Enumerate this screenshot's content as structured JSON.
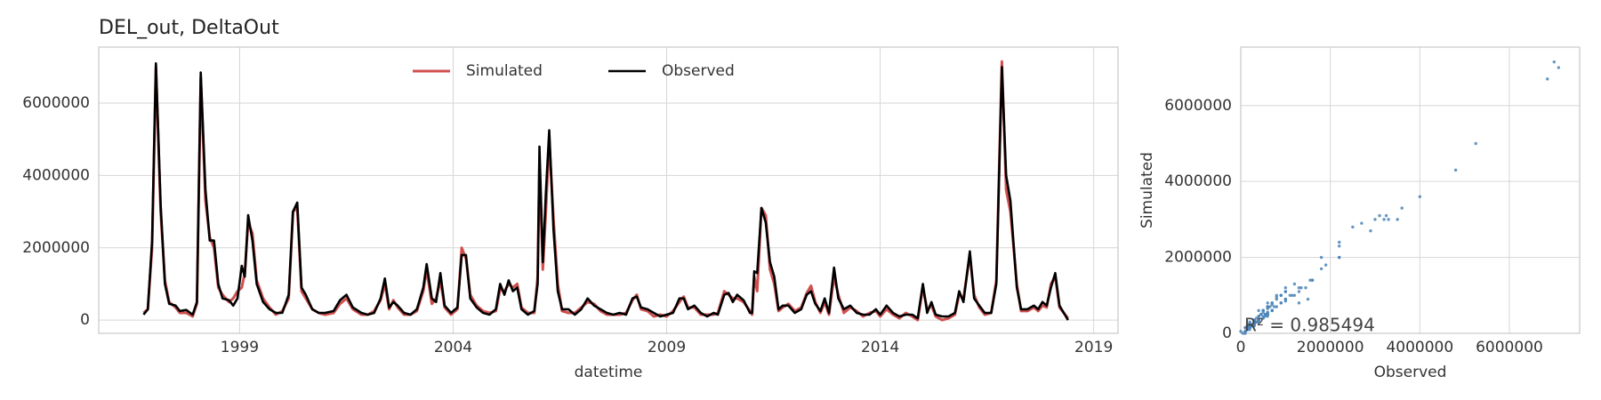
{
  "chart_data": [
    {
      "type": "line",
      "title": "DEL_out, DeltaOut",
      "xlabel": "datetime",
      "legend": "upper center",
      "grid": true,
      "xlim": [
        1995.7,
        2019.57
      ],
      "xticks": [
        1999,
        2004,
        2009,
        2014,
        2019
      ],
      "ylim": [
        -366000,
        7550000
      ],
      "yticks": [
        0,
        2000000,
        4000000,
        6000000
      ],
      "x": [
        1996.75,
        1996.85,
        1996.95,
        1997.04,
        1997.15,
        1997.25,
        1997.35,
        1997.5,
        1997.6,
        1997.75,
        1997.9,
        1998.0,
        1998.09,
        1998.2,
        1998.3,
        1998.4,
        1998.5,
        1998.6,
        1998.75,
        1998.85,
        1998.95,
        1999.05,
        1999.12,
        1999.2,
        1999.3,
        1999.4,
        1999.55,
        1999.7,
        1999.85,
        2000.0,
        2000.15,
        2000.25,
        2000.35,
        2000.45,
        2000.55,
        2000.7,
        2000.85,
        2001.0,
        2001.2,
        2001.35,
        2001.5,
        2001.65,
        2001.85,
        2002.0,
        2002.15,
        2002.3,
        2002.4,
        2002.5,
        2002.6,
        2002.7,
        2002.85,
        2003.0,
        2003.15,
        2003.3,
        2003.38,
        2003.5,
        2003.6,
        2003.7,
        2003.8,
        2003.95,
        2004.1,
        2004.2,
        2004.3,
        2004.4,
        2004.55,
        2004.7,
        2004.85,
        2005.0,
        2005.1,
        2005.2,
        2005.3,
        2005.4,
        2005.5,
        2005.6,
        2005.75,
        2005.9,
        2005.98,
        2006.02,
        2006.1,
        2006.17,
        2006.25,
        2006.35,
        2006.45,
        2006.55,
        2006.7,
        2006.85,
        2007.0,
        2007.15,
        2007.3,
        2007.45,
        2007.6,
        2007.75,
        2007.9,
        2008.05,
        2008.2,
        2008.3,
        2008.4,
        2008.55,
        2008.7,
        2008.85,
        2009.0,
        2009.15,
        2009.3,
        2009.4,
        2009.5,
        2009.65,
        2009.8,
        2009.95,
        2010.1,
        2010.2,
        2010.35,
        2010.45,
        2010.55,
        2010.65,
        2010.8,
        2010.95,
        2011.0,
        2011.05,
        2011.12,
        2011.22,
        2011.32,
        2011.42,
        2011.52,
        2011.62,
        2011.72,
        2011.85,
        2012.0,
        2012.15,
        2012.28,
        2012.38,
        2012.48,
        2012.6,
        2012.7,
        2012.8,
        2012.92,
        2013.02,
        2013.15,
        2013.3,
        2013.45,
        2013.6,
        2013.75,
        2013.9,
        2014.0,
        2014.15,
        2014.3,
        2014.45,
        2014.6,
        2014.75,
        2014.88,
        2015.0,
        2015.1,
        2015.2,
        2015.3,
        2015.45,
        2015.6,
        2015.75,
        2015.85,
        2015.95,
        2016.1,
        2016.2,
        2016.32,
        2016.45,
        2016.6,
        2016.72,
        2016.85,
        2016.95,
        2017.05,
        2017.2,
        2017.3,
        2017.45,
        2017.6,
        2017.7,
        2017.8,
        2017.9,
        2018.0,
        2018.1,
        2018.2,
        2018.4
      ],
      "series": [
        {
          "name": "Simulated",
          "color": "#d0504f",
          "values": [
            200000,
            300000,
            2000000,
            7000000,
            3000000,
            1100000,
            500000,
            350000,
            200000,
            200000,
            100000,
            450000,
            6700000,
            3300000,
            2300000,
            2000000,
            900000,
            700000,
            500000,
            600000,
            800000,
            900000,
            1300000,
            2700000,
            2400000,
            1100000,
            600000,
            350000,
            150000,
            250000,
            600000,
            3000000,
            3100000,
            800000,
            600000,
            300000,
            200000,
            150000,
            200000,
            450000,
            600000,
            300000,
            150000,
            150000,
            250000,
            550000,
            1000000,
            300000,
            550000,
            350000,
            150000,
            150000,
            250000,
            800000,
            1400000,
            450000,
            600000,
            1100000,
            350000,
            150000,
            300000,
            2000000,
            1700000,
            700000,
            400000,
            250000,
            200000,
            250000,
            850000,
            800000,
            1000000,
            900000,
            1000000,
            350000,
            200000,
            200000,
            1200000,
            4300000,
            1400000,
            3000000,
            5000000,
            2800000,
            1000000,
            250000,
            200000,
            200000,
            350000,
            500000,
            450000,
            250000,
            150000,
            150000,
            150000,
            200000,
            550000,
            700000,
            300000,
            250000,
            100000,
            150000,
            100000,
            250000,
            500000,
            650000,
            350000,
            350000,
            150000,
            150000,
            150000,
            200000,
            800000,
            700000,
            600000,
            600000,
            500000,
            250000,
            150000,
            1200000,
            800000,
            3100000,
            2900000,
            1400000,
            1000000,
            250000,
            350000,
            450000,
            250000,
            350000,
            750000,
            950000,
            500000,
            200000,
            500000,
            150000,
            1200000,
            700000,
            200000,
            350000,
            250000,
            100000,
            200000,
            250000,
            100000,
            300000,
            150000,
            50000,
            200000,
            100000,
            0,
            900000,
            300000,
            400000,
            100000,
            0,
            50000,
            150000,
            700000,
            600000,
            1800000,
            700000,
            350000,
            150000,
            200000,
            1100000,
            7150000,
            3600000,
            3000000,
            1000000,
            250000,
            250000,
            350000,
            250000,
            400000,
            350000,
            1000000,
            1200000,
            350000,
            50000
          ]
        },
        {
          "name": "Observed",
          "color": "#000000",
          "values": [
            150000,
            300000,
            2200000,
            7100000,
            3200000,
            1000000,
            450000,
            400000,
            250000,
            280000,
            150000,
            500000,
            6850000,
            3600000,
            2200000,
            2200000,
            1000000,
            600000,
            550000,
            400000,
            600000,
            1500000,
            1200000,
            2900000,
            2200000,
            1000000,
            500000,
            300000,
            200000,
            200000,
            700000,
            3000000,
            3250000,
            900000,
            700000,
            300000,
            200000,
            200000,
            250000,
            550000,
            700000,
            350000,
            200000,
            150000,
            200000,
            600000,
            1150000,
            350000,
            500000,
            400000,
            200000,
            150000,
            300000,
            900000,
            1550000,
            600000,
            500000,
            1300000,
            400000,
            200000,
            350000,
            1800000,
            1800000,
            600000,
            350000,
            200000,
            150000,
            300000,
            1000000,
            700000,
            1100000,
            800000,
            900000,
            300000,
            150000,
            250000,
            1000000,
            4800000,
            1600000,
            3500000,
            5250000,
            2500000,
            800000,
            300000,
            300000,
            150000,
            300000,
            600000,
            400000,
            300000,
            200000,
            150000,
            200000,
            150000,
            600000,
            650000,
            350000,
            300000,
            200000,
            100000,
            150000,
            200000,
            600000,
            600000,
            300000,
            400000,
            200000,
            100000,
            200000,
            150000,
            700000,
            750000,
            500000,
            700000,
            550000,
            200000,
            200000,
            1350000,
            1300000,
            3100000,
            2700000,
            1600000,
            1200000,
            300000,
            400000,
            400000,
            200000,
            300000,
            700000,
            800000,
            450000,
            250000,
            600000,
            200000,
            1450000,
            600000,
            300000,
            400000,
            200000,
            150000,
            150000,
            300000,
            150000,
            400000,
            200000,
            100000,
            150000,
            150000,
            50000,
            1000000,
            200000,
            500000,
            150000,
            100000,
            100000,
            200000,
            800000,
            500000,
            1900000,
            600000,
            400000,
            200000,
            200000,
            1000000,
            7000000,
            4000000,
            3300000,
            900000,
            300000,
            300000,
            400000,
            300000,
            500000,
            400000,
            900000,
            1300000,
            400000,
            0
          ]
        }
      ]
    },
    {
      "type": "scatter",
      "xlabel": "Observed",
      "ylabel": "Simulated",
      "annotation": "R² = 0.985494",
      "color": "#4a84b8",
      "grid": true,
      "xlim": [
        0,
        7570000
      ],
      "xticks": [
        0,
        2000000,
        4000000,
        6000000
      ],
      "ylim": [
        0,
        7540000
      ],
      "yticks": [
        0,
        2000000,
        4000000,
        6000000
      ]
    }
  ]
}
